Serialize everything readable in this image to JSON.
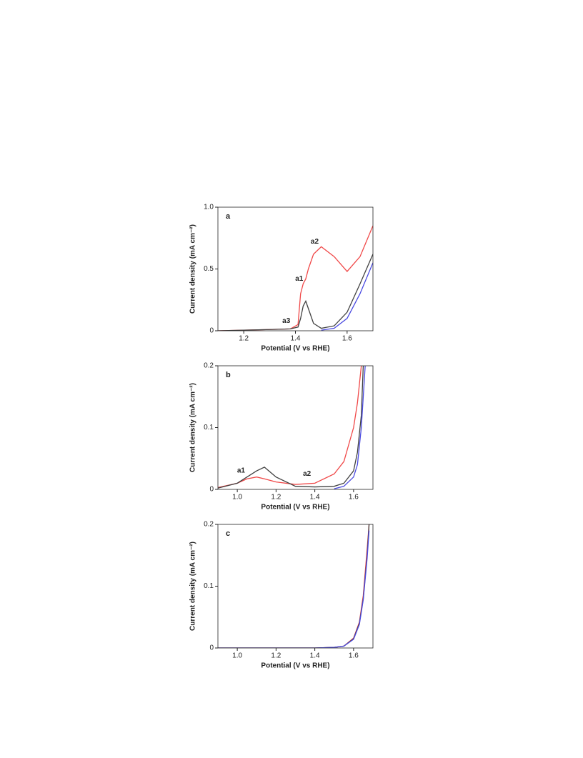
{
  "chart_data": [
    {
      "type": "line",
      "label": "a",
      "xlabel": "Potential (V vs RHE)",
      "ylabel": "Current density (mA cm⁻²)",
      "x": [
        1.1,
        1.2,
        1.3,
        1.38,
        1.41,
        1.42,
        1.43,
        1.44,
        1.45,
        1.47,
        1.5,
        1.55,
        1.6,
        1.65,
        1.7
      ],
      "series": [
        {
          "color": "#f04848",
          "values": [
            0,
            0.005,
            0.01,
            0.015,
            0.05,
            0.3,
            0.38,
            0.42,
            0.5,
            0.62,
            0.68,
            0.6,
            0.48,
            0.6,
            0.85
          ]
        },
        {
          "color": "#404040",
          "values": [
            0,
            0.005,
            0.01,
            0.015,
            0.03,
            0.1,
            0.2,
            0.24,
            0.18,
            0.06,
            0.02,
            0.04,
            0.15,
            0.38,
            0.62
          ]
        },
        {
          "color": "#4a4ae0",
          "values": [
            null,
            null,
            null,
            null,
            null,
            null,
            null,
            null,
            null,
            null,
            0.005,
            0.02,
            0.1,
            0.3,
            0.55
          ]
        }
      ],
      "annotations": [
        {
          "text": "a1",
          "x": 1.43,
          "y": 0.42
        },
        {
          "text": "a2",
          "x": 1.49,
          "y": 0.72
        },
        {
          "text": "a3",
          "x": 1.38,
          "y": 0.08
        }
      ],
      "xlim": [
        1.1,
        1.7
      ],
      "xticks": [
        1.2,
        1.4,
        1.6
      ],
      "ylim": [
        0,
        1
      ],
      "yticks": [
        0,
        0.5,
        {
          "value": 1,
          "label": "1.0"
        }
      ]
    },
    {
      "type": "line",
      "label": "b",
      "xlabel": "Potential (V vs RHE)",
      "ylabel": "Current density (mA cm⁻²)",
      "x": [
        0.9,
        1.0,
        1.05,
        1.1,
        1.14,
        1.2,
        1.3,
        1.4,
        1.5,
        1.55,
        1.6,
        1.62,
        1.64,
        1.65,
        1.66
      ],
      "series": [
        {
          "color": "#f04848",
          "values": [
            0.003,
            0.01,
            0.017,
            0.02,
            0.017,
            0.012,
            0.008,
            0.01,
            0.025,
            0.045,
            0.1,
            0.14,
            0.2,
            null,
            null
          ]
        },
        {
          "color": "#404040",
          "values": [
            0.002,
            0.01,
            0.02,
            0.03,
            0.036,
            0.02,
            0.005,
            0.004,
            0.005,
            0.01,
            0.03,
            0.06,
            0.12,
            0.2,
            null
          ]
        },
        {
          "color": "#4a4ae0",
          "values": [
            null,
            null,
            null,
            null,
            null,
            null,
            null,
            null,
            0.001,
            0.005,
            0.02,
            0.04,
            0.1,
            0.15,
            0.2
          ]
        }
      ],
      "annotations": [
        {
          "text": "a1",
          "x": 1.04,
          "y": 0.03
        },
        {
          "text": "a2",
          "x": 1.38,
          "y": 0.025
        }
      ],
      "xlim": [
        0.9,
        1.7
      ],
      "xticks": [
        {
          "value": 1,
          "label": "1.0"
        },
        1.2,
        1.4,
        1.6
      ],
      "ylim": [
        0,
        0.2
      ],
      "yticks": [
        0,
        0.1,
        0.2
      ]
    },
    {
      "type": "line",
      "label": "c",
      "xlabel": "Potential (V vs RHE)",
      "ylabel": "Current density (mA cm⁻²)",
      "x": [
        0.9,
        1.2,
        1.4,
        1.5,
        1.55,
        1.6,
        1.63,
        1.65,
        1.67,
        1.68
      ],
      "series": [
        {
          "color": "#f04848",
          "values": [
            0,
            0,
            0,
            0.001,
            0.003,
            0.016,
            0.042,
            0.085,
            0.16,
            0.2
          ]
        },
        {
          "color": "#404040",
          "values": [
            0,
            0,
            0,
            0.001,
            0.003,
            0.015,
            0.04,
            0.08,
            0.15,
            0.2
          ]
        },
        {
          "color": "#4a4ae0",
          "values": [
            0,
            0,
            0,
            0.001,
            0.003,
            0.014,
            0.038,
            0.078,
            0.145,
            0.19
          ]
        }
      ],
      "annotations": [],
      "xlim": [
        0.9,
        1.7
      ],
      "xticks": [
        {
          "value": 1,
          "label": "1.0"
        },
        1.2,
        1.4,
        1.6
      ],
      "ylim": [
        0,
        0.2
      ],
      "yticks": [
        0,
        0.1,
        0.2
      ]
    }
  ]
}
